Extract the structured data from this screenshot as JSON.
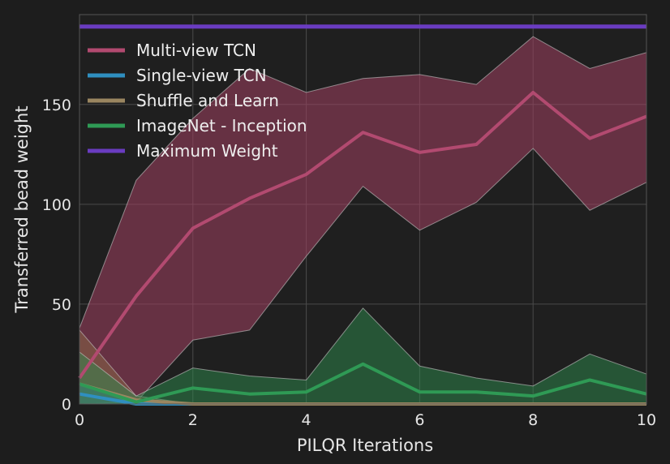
{
  "chart_data": {
    "type": "line",
    "xlabel": "PILQR Iterations",
    "ylabel": "Transferred bead weight",
    "xlim": [
      0,
      10
    ],
    "ylim": [
      0,
      195
    ],
    "x_ticks": [
      "0",
      "2",
      "4",
      "6",
      "8",
      "10"
    ],
    "y_ticks": [
      "0",
      "50",
      "100",
      "150"
    ],
    "grid": true,
    "legend_position": "top-left",
    "x": [
      0,
      1,
      2,
      3,
      4,
      5,
      6,
      7,
      8,
      9,
      10
    ],
    "series": [
      {
        "name": "Multi-view TCN",
        "color": "#a04060",
        "values": [
          13,
          54,
          88,
          103,
          115,
          136,
          126,
          130,
          156,
          133,
          144
        ],
        "lower": [
          0,
          1,
          32,
          37,
          74,
          109,
          87,
          101,
          128,
          97,
          111
        ],
        "upper": [
          38,
          112,
          143,
          168,
          156,
          163,
          165,
          160,
          184,
          168,
          176
        ]
      },
      {
        "name": "Single-view TCN",
        "color": "#2a7fa8",
        "values": [
          5,
          0,
          0,
          0,
          0,
          0,
          0,
          0,
          0,
          0,
          0
        ],
        "lower": [
          0,
          0,
          0,
          0,
          0,
          0,
          0,
          0,
          0,
          0,
          0
        ],
        "upper": [
          10,
          0,
          0,
          0,
          0,
          0,
          0,
          0,
          0,
          0,
          0
        ]
      },
      {
        "name": "Shuffle and Learn",
        "color": "#8a7a55",
        "values": [
          10,
          2,
          0,
          0,
          0,
          0,
          0,
          0,
          0,
          0,
          0
        ],
        "lower": [
          0,
          0,
          0,
          0,
          0,
          0,
          0,
          0,
          0,
          0,
          0
        ],
        "upper": [
          37,
          4,
          0,
          0,
          0,
          0,
          0,
          0,
          0,
          0,
          0
        ]
      },
      {
        "name": "ImageNet - Inception",
        "color": "#2e8b4e",
        "values": [
          10,
          1,
          8,
          5,
          6,
          20,
          6,
          6,
          4,
          12,
          5
        ],
        "lower": [
          0,
          0,
          0,
          0,
          0,
          0,
          0,
          0,
          0,
          0,
          0
        ],
        "upper": [
          26,
          4,
          18,
          14,
          12,
          48,
          19,
          13,
          9,
          25,
          15
        ]
      },
      {
        "name": "Maximum Weight",
        "color": "#6a3cc0",
        "values": [
          189,
          189,
          189,
          189,
          189,
          189,
          189,
          189,
          189,
          189,
          189
        ]
      }
    ]
  }
}
